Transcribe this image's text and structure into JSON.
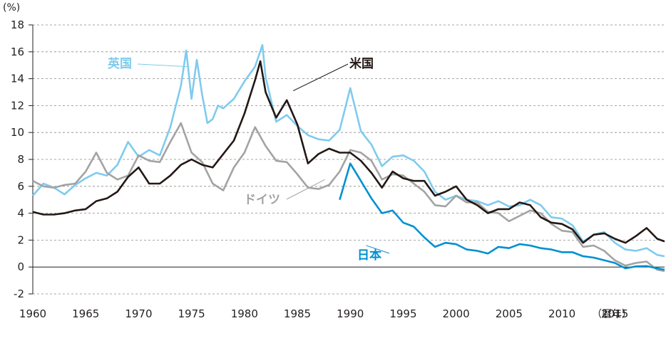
{
  "chart_data": {
    "type": "line",
    "y_unit": "(%)",
    "x_unit": "（暦年）",
    "xlim": [
      1960,
      2019.7
    ],
    "ylim": [
      -2,
      18
    ],
    "x_ticks": [
      1960,
      1965,
      1970,
      1975,
      1980,
      1985,
      1990,
      1995,
      2000,
      2005,
      2010,
      2015
    ],
    "y_ticks": [
      -2,
      0,
      2,
      4,
      6,
      8,
      10,
      12,
      14,
      16,
      18
    ],
    "grid": "horizontal-dashed",
    "series": [
      {
        "name": "英国",
        "color": "#7fcbee",
        "x": [
          1960,
          1961,
          1962,
          1963,
          1964,
          1965,
          1966,
          1967,
          1968,
          1969,
          1970,
          1971,
          1972,
          1973,
          1974,
          1974.5,
          1975,
          1975.5,
          1976,
          1976.5,
          1977,
          1977.5,
          1978,
          1979,
          1980,
          1981,
          1981.7,
          1982,
          1983,
          1984,
          1985,
          1986,
          1987,
          1988,
          1989,
          1990,
          1991,
          1992,
          1993,
          1994,
          1995,
          1996,
          1997,
          1998,
          1999,
          2000,
          2001,
          2002,
          2003,
          2004,
          2005,
          2006,
          2007,
          2008,
          2009,
          2010,
          2011,
          2012,
          2013,
          2014,
          2015,
          2016,
          2017,
          2018,
          2019,
          2019.7
        ],
        "y": [
          5.3,
          6.2,
          5.9,
          5.4,
          6.1,
          6.6,
          7.0,
          6.8,
          7.6,
          9.3,
          8.2,
          8.7,
          8.3,
          10.4,
          13.5,
          16.1,
          12.5,
          15.4,
          12.8,
          10.7,
          11.0,
          12.0,
          11.8,
          12.5,
          13.8,
          14.9,
          16.5,
          14.1,
          10.8,
          11.3,
          10.5,
          9.8,
          9.5,
          9.4,
          10.2,
          13.3,
          10.1,
          9.1,
          7.5,
          8.2,
          8.3,
          7.9,
          7.1,
          5.6,
          5.0,
          5.3,
          5.0,
          4.9,
          4.6,
          4.9,
          4.5,
          4.6,
          5.0,
          4.6,
          3.7,
          3.6,
          3.1,
          1.9,
          2.4,
          2.6,
          1.8,
          1.3,
          1.2,
          1.4,
          0.9,
          0.8
        ]
      },
      {
        "name": "ドイツ",
        "color": "#a3a3a3",
        "x": [
          1960,
          1961,
          1962,
          1963,
          1964,
          1965,
          1966,
          1967,
          1968,
          1969,
          1970,
          1971,
          1972,
          1973,
          1974,
          1975,
          1976,
          1977,
          1978,
          1979,
          1980,
          1981,
          1982,
          1983,
          1984,
          1985,
          1986,
          1987,
          1988,
          1989,
          1990,
          1991,
          1992,
          1993,
          1994,
          1995,
          1996,
          1997,
          1998,
          1999,
          2000,
          2001,
          2002,
          2003,
          2004,
          2005,
          2006,
          2007,
          2008,
          2009,
          2010,
          2011,
          2012,
          2013,
          2014,
          2015,
          2016,
          2017,
          2018,
          2019,
          2019.7
        ],
        "y": [
          6.4,
          6.0,
          5.9,
          6.1,
          6.2,
          7.1,
          8.5,
          7.0,
          6.5,
          6.8,
          8.3,
          7.9,
          7.8,
          9.3,
          10.7,
          8.5,
          7.8,
          6.2,
          5.7,
          7.4,
          8.5,
          10.4,
          9.0,
          7.9,
          7.8,
          6.9,
          5.9,
          5.8,
          6.1,
          7.1,
          8.7,
          8.5,
          7.9,
          6.5,
          6.9,
          6.8,
          6.2,
          5.6,
          4.6,
          4.5,
          5.3,
          4.8,
          4.8,
          4.1,
          4.0,
          3.4,
          3.8,
          4.2,
          4.0,
          3.2,
          2.7,
          2.6,
          1.5,
          1.6,
          1.2,
          0.5,
          0.1,
          0.3,
          0.4,
          -0.2,
          -0.3
        ]
      },
      {
        "name": "米国",
        "color": "#231815",
        "x": [
          1960,
          1961,
          1962,
          1963,
          1964,
          1965,
          1966,
          1967,
          1968,
          1969,
          1970,
          1971,
          1972,
          1973,
          1974,
          1975,
          1976,
          1977,
          1978,
          1979,
          1980,
          1981,
          1981.5,
          1982,
          1983,
          1984,
          1985,
          1986,
          1987,
          1988,
          1989,
          1990,
          1991,
          1992,
          1993,
          1994,
          1995,
          1996,
          1997,
          1998,
          1999,
          2000,
          2001,
          2002,
          2003,
          2004,
          2005,
          2006,
          2007,
          2008,
          2009,
          2010,
          2011,
          2012,
          2013,
          2014,
          2015,
          2016,
          2017,
          2018,
          2019,
          2019.7
        ],
        "y": [
          4.1,
          3.9,
          3.9,
          4.0,
          4.2,
          4.3,
          4.9,
          5.1,
          5.6,
          6.7,
          7.4,
          6.2,
          6.2,
          6.8,
          7.6,
          8.0,
          7.6,
          7.4,
          8.4,
          9.4,
          11.4,
          13.9,
          15.3,
          13.0,
          11.1,
          12.4,
          10.6,
          7.7,
          8.4,
          8.8,
          8.5,
          8.5,
          7.9,
          7.0,
          5.9,
          7.1,
          6.6,
          6.4,
          6.4,
          5.3,
          5.6,
          6.0,
          5.0,
          4.6,
          4.0,
          4.3,
          4.3,
          4.8,
          4.6,
          3.7,
          3.3,
          3.2,
          2.8,
          1.8,
          2.4,
          2.5,
          2.1,
          1.8,
          2.3,
          2.9,
          2.1,
          1.9
        ]
      },
      {
        "name": "日本",
        "color": "#0090d0",
        "x": [
          1989,
          1990,
          1991,
          1992,
          1993,
          1994,
          1995,
          1996,
          1997,
          1998,
          1999,
          2000,
          2001,
          2002,
          2003,
          2004,
          2005,
          2006,
          2007,
          2008,
          2009,
          2010,
          2011,
          2012,
          2013,
          2014,
          2015,
          2016,
          2017,
          2018,
          2019,
          2019.7
        ],
        "y": [
          5.0,
          7.7,
          6.4,
          5.1,
          4.0,
          4.2,
          3.3,
          3.0,
          2.2,
          1.5,
          1.8,
          1.7,
          1.3,
          1.2,
          1.0,
          1.5,
          1.4,
          1.7,
          1.6,
          1.4,
          1.3,
          1.1,
          1.1,
          0.8,
          0.7,
          0.5,
          0.3,
          -0.1,
          0.05,
          0.07,
          -0.1,
          -0.2
        ]
      }
    ]
  },
  "labels": [
    {
      "key": "英国",
      "color": "#7fcbee",
      "text": "英国"
    },
    {
      "key": "米国",
      "color": "#231815",
      "text": "米国"
    },
    {
      "key": "ドイツ",
      "color": "#a3a3a3",
      "text": "ドイツ"
    },
    {
      "key": "日本",
      "color": "#0090d0",
      "text": "日本"
    }
  ]
}
